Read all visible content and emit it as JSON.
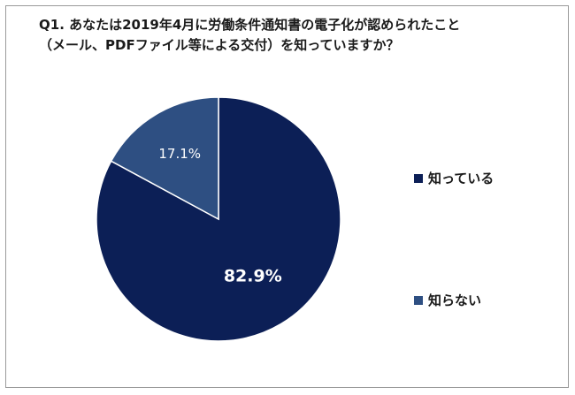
{
  "title_lines": [
    "Q1.  あなたは2019年4月に労働条件通知書の電子化が認められたこと",
    "（メール、PDFファイル等による交付）を知っていますか？"
  ],
  "chart_data": {
    "type": "pie",
    "categories": [
      "知っている",
      "知らない"
    ],
    "values": [
      82.9,
      17.1
    ],
    "value_labels": [
      "82.9%",
      "17.1%"
    ],
    "colors": [
      "#0c1f56",
      "#2e4f82"
    ],
    "start": "12 o'clock",
    "direction": "clockwise",
    "legend": "right"
  }
}
